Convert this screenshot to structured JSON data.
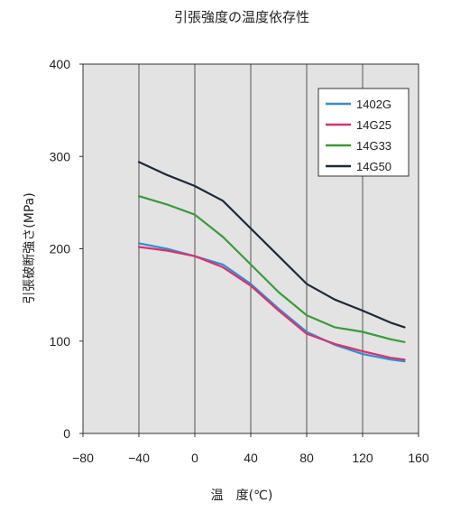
{
  "chart_data": {
    "type": "line",
    "title": "引張強度の温度依存性",
    "xlabel": "温　度(℃)",
    "ylabel": "引張破断強さ(MPa)",
    "xlim": [
      -80,
      160
    ],
    "ylim": [
      0,
      400
    ],
    "xticks": [
      -80,
      -40,
      0,
      40,
      80,
      120,
      160
    ],
    "yticks": [
      0,
      100,
      200,
      300,
      400
    ],
    "xtick_labels": [
      "−80",
      "−40",
      "0",
      "40",
      "80",
      "120",
      "160"
    ],
    "ytick_labels": [
      "0",
      "100",
      "200",
      "300",
      "400"
    ],
    "grid": "vertical",
    "legend_position": "top-right",
    "series": [
      {
        "name": "1402G",
        "color": "#2f8fd0",
        "x": [
          -40,
          -20,
          0,
          20,
          40,
          60,
          80,
          100,
          120,
          140,
          150
        ],
        "y": [
          206,
          200,
          192,
          183,
          162,
          135,
          110,
          96,
          86,
          80,
          78
        ]
      },
      {
        "name": "14G25",
        "color": "#d8336e",
        "x": [
          -40,
          -20,
          0,
          20,
          40,
          60,
          80,
          100,
          120,
          140,
          150
        ],
        "y": [
          202,
          198,
          192,
          180,
          160,
          133,
          108,
          97,
          89,
          82,
          80
        ]
      },
      {
        "name": "14G33",
        "color": "#3b9a3b",
        "x": [
          -40,
          -20,
          0,
          20,
          40,
          60,
          80,
          100,
          120,
          140,
          150
        ],
        "y": [
          257,
          248,
          237,
          213,
          183,
          153,
          128,
          115,
          110,
          102,
          99
        ]
      },
      {
        "name": "14G50",
        "color": "#1c2a3a",
        "x": [
          -40,
          -20,
          0,
          20,
          40,
          60,
          80,
          100,
          120,
          140,
          150
        ],
        "y": [
          294,
          280,
          268,
          252,
          222,
          192,
          162,
          145,
          133,
          120,
          115
        ]
      }
    ]
  }
}
